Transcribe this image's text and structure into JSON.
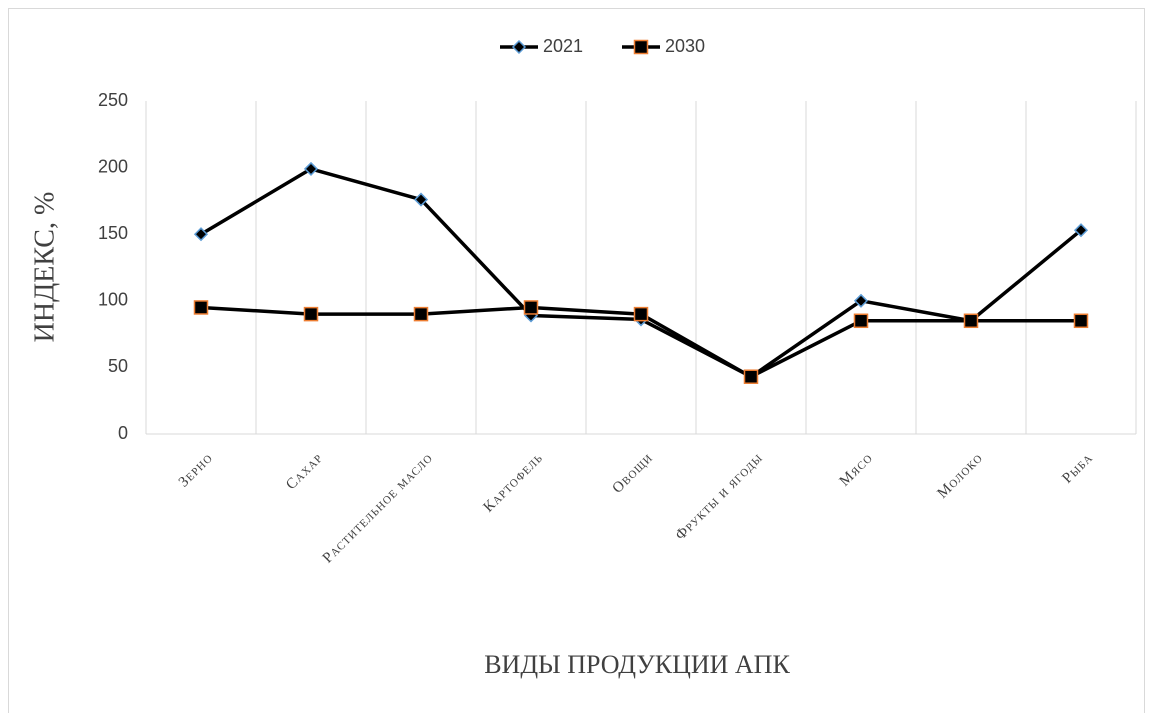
{
  "chart_data": {
    "type": "line",
    "y_label": "ИНДЕКС, %",
    "x_label": "ВИДЫ ПРОДУКЦИИ АПК",
    "categories": [
      "Зерно",
      "Сахар",
      "Растительное масло",
      "Картофель",
      "Овощи",
      "Фрукты и ягоды",
      "Мясо",
      "Молоко",
      "Рыба"
    ],
    "series": [
      {
        "name": "2021",
        "color": "#000000",
        "marker": "diamond",
        "marker_edge_color": "#5b9bd5",
        "values": [
          150,
          199,
          176,
          89,
          86,
          43,
          100,
          85,
          153
        ]
      },
      {
        "name": "2030",
        "color": "#000000",
        "marker": "square",
        "marker_edge_color": "#ed7d31",
        "values": [
          95,
          90,
          90,
          95,
          90,
          43,
          85,
          85,
          85
        ]
      }
    ],
    "ylim": [
      0,
      250
    ],
    "yticks": [
      0,
      50,
      100,
      150,
      200,
      250
    ],
    "legend": "top"
  }
}
